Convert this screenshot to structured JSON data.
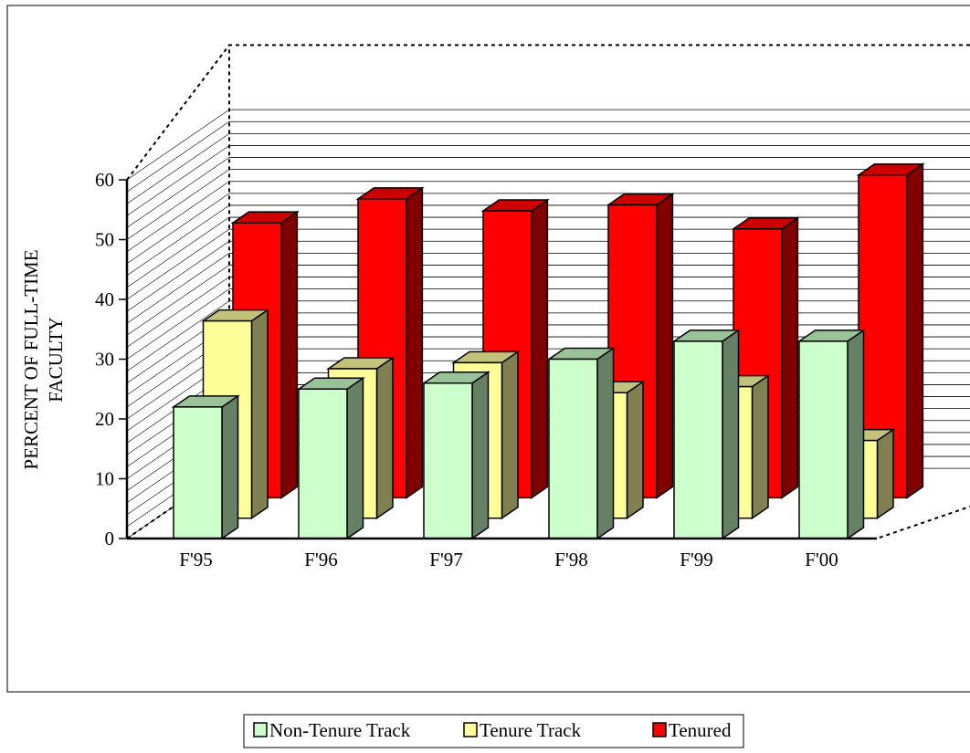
{
  "chart_data": {
    "type": "bar",
    "title": "",
    "xlabel": "",
    "ylabel_lines": [
      "PERCENT OF FULL-TIME",
      "FACULTY"
    ],
    "categories": [
      "F'95",
      "F'96",
      "F'97",
      "F'98",
      "F'99",
      "F'00"
    ],
    "series": [
      {
        "name": "Non-Tenure Track",
        "values": [
          22,
          25,
          26,
          30,
          33,
          33
        ],
        "colors": {
          "front": "#ccffcc",
          "top": "#99c299",
          "side": "#668066"
        }
      },
      {
        "name": "Tenure Track",
        "values": [
          33,
          25,
          26,
          21,
          22,
          13
        ],
        "colors": {
          "front": "#ffff99",
          "top": "#c2c27a",
          "side": "#808052"
        }
      },
      {
        "name": "Tenured",
        "values": [
          46,
          50,
          48,
          49,
          45,
          54
        ],
        "colors": {
          "front": "#ff0000",
          "top": "#cc0000",
          "side": "#800000"
        }
      }
    ],
    "ylim": [
      0,
      60
    ],
    "yticks": [
      0,
      10,
      20,
      30,
      40,
      50,
      60
    ],
    "grid": true,
    "legend_position": "bottom",
    "projection": "3d"
  }
}
